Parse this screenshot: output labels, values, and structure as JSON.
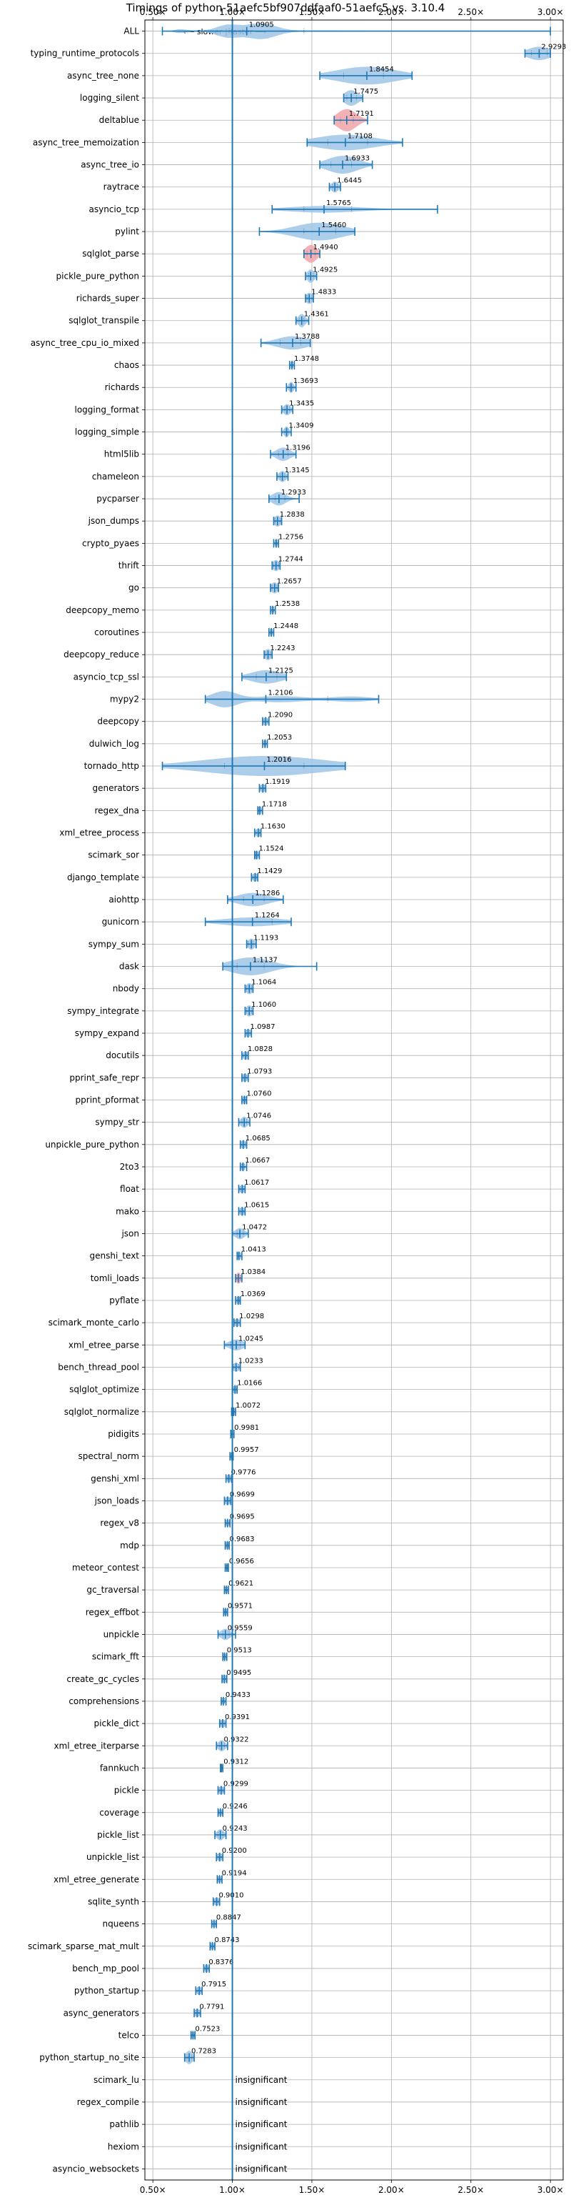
{
  "chart_data": {
    "type": "violin",
    "title": "Timings of python-51aefc5bf907ddfaaf0-51aefc5 vs. 3.10.4",
    "direction_label": "⟵ slower | faster ⟶",
    "xlim": [
      0.45,
      3.08
    ],
    "xticks": [
      0.5,
      1.0,
      1.5,
      2.0,
      2.5,
      3.0
    ],
    "xtick_labels": [
      "0.50×",
      "1.00×",
      "1.50×",
      "2.00×",
      "2.50×",
      "3.00×"
    ],
    "reference_x": 1.0,
    "grid": true,
    "colors": {
      "violin": "#9ec6e8",
      "violin_regression": "#f2a3a8",
      "line": "#1f77b4",
      "reference": "#1f77b4",
      "grid": "#b0b0b0"
    },
    "insignificant_label": "insignificant",
    "benchmarks": [
      {
        "name": "ALL",
        "mean": 1.0905,
        "label": "1.0905",
        "min": 0.56,
        "max": 3.0,
        "q1": 0.98,
        "q3": 1.45,
        "width": 1.2,
        "shape": "all"
      },
      {
        "name": "typing_runtime_protocols",
        "mean": 2.9293,
        "label": "2.9293",
        "min": 2.84,
        "max": 3.0,
        "q1": 2.88,
        "q3": 2.98,
        "width": 0.6
      },
      {
        "name": "async_tree_none",
        "mean": 1.8454,
        "label": "1.8454",
        "min": 1.55,
        "max": 2.13,
        "q1": 1.7,
        "q3": 1.95,
        "width": 0.8
      },
      {
        "name": "logging_silent",
        "mean": 1.7475,
        "label": "1.7475",
        "min": 1.7,
        "max": 1.82,
        "q1": 1.72,
        "q3": 1.78,
        "width": 0.7
      },
      {
        "name": "deltablue",
        "mean": 1.7191,
        "label": "1.7191",
        "min": 1.64,
        "max": 1.85,
        "q1": 1.68,
        "q3": 1.76,
        "width": 1.0,
        "regression": true
      },
      {
        "name": "async_tree_memoization",
        "mean": 1.7108,
        "label": "1.7108",
        "min": 1.47,
        "max": 2.07,
        "q1": 1.6,
        "q3": 1.85,
        "width": 0.7
      },
      {
        "name": "async_tree_io",
        "mean": 1.6933,
        "label": "1.6933",
        "min": 1.55,
        "max": 1.88,
        "q1": 1.62,
        "q3": 1.75,
        "width": 0.8
      },
      {
        "name": "raytrace",
        "mean": 1.6445,
        "label": "1.6445",
        "min": 1.61,
        "max": 1.68,
        "q1": 1.63,
        "q3": 1.66,
        "width": 0.5
      },
      {
        "name": "asyncio_tcp",
        "mean": 1.5765,
        "label": "1.5765",
        "min": 1.25,
        "max": 2.29,
        "q1": 1.45,
        "q3": 1.75,
        "width": 0.3
      },
      {
        "name": "pylint",
        "mean": 1.546,
        "label": "1.5460",
        "min": 1.17,
        "max": 1.77,
        "q1": 1.45,
        "q3": 1.65,
        "width": 0.8
      },
      {
        "name": "sqlglot_parse",
        "mean": 1.494,
        "label": "1.4940",
        "min": 1.45,
        "max": 1.55,
        "q1": 1.47,
        "q3": 1.52,
        "width": 0.8,
        "regression": true
      },
      {
        "name": "pickle_pure_python",
        "mean": 1.4925,
        "label": "1.4925",
        "min": 1.46,
        "max": 1.53,
        "q1": 1.48,
        "q3": 1.51,
        "width": 0.6
      },
      {
        "name": "richards_super",
        "mean": 1.4833,
        "label": "1.4833",
        "min": 1.46,
        "max": 1.51,
        "q1": 1.47,
        "q3": 1.5,
        "width": 0.5
      },
      {
        "name": "sqlglot_transpile",
        "mean": 1.4361,
        "label": "1.4361",
        "min": 1.4,
        "max": 1.48,
        "q1": 1.42,
        "q3": 1.45,
        "width": 0.6
      },
      {
        "name": "async_tree_cpu_io_mixed",
        "mean": 1.3788,
        "label": "1.3788",
        "min": 1.18,
        "max": 1.49,
        "q1": 1.3,
        "q3": 1.43,
        "width": 0.6
      },
      {
        "name": "chaos",
        "mean": 1.3748,
        "label": "1.3748",
        "min": 1.36,
        "max": 1.39,
        "q1": 1.37,
        "q3": 1.38,
        "width": 0.4
      },
      {
        "name": "richards",
        "mean": 1.3693,
        "label": "1.3693",
        "min": 1.34,
        "max": 1.4,
        "q1": 1.36,
        "q3": 1.38,
        "width": 0.5
      },
      {
        "name": "logging_format",
        "mean": 1.3435,
        "label": "1.3435",
        "min": 1.31,
        "max": 1.38,
        "q1": 1.33,
        "q3": 1.36,
        "width": 0.5
      },
      {
        "name": "logging_simple",
        "mean": 1.3409,
        "label": "1.3409",
        "min": 1.31,
        "max": 1.37,
        "q1": 1.33,
        "q3": 1.35,
        "width": 0.5
      },
      {
        "name": "html5lib",
        "mean": 1.3196,
        "label": "1.3196",
        "min": 1.24,
        "max": 1.4,
        "q1": 1.29,
        "q3": 1.35,
        "width": 0.6
      },
      {
        "name": "chameleon",
        "mean": 1.3145,
        "label": "1.3145",
        "min": 1.28,
        "max": 1.35,
        "q1": 1.3,
        "q3": 1.33,
        "width": 0.5
      },
      {
        "name": "pycparser",
        "mean": 1.2933,
        "label": "1.2933",
        "min": 1.23,
        "max": 1.42,
        "q1": 1.27,
        "q3": 1.33,
        "width": 0.6
      },
      {
        "name": "json_dumps",
        "mean": 1.2838,
        "label": "1.2838",
        "min": 1.26,
        "max": 1.31,
        "q1": 1.27,
        "q3": 1.3,
        "width": 0.5
      },
      {
        "name": "crypto_pyaes",
        "mean": 1.2756,
        "label": "1.2756",
        "min": 1.26,
        "max": 1.29,
        "q1": 1.27,
        "q3": 1.28,
        "width": 0.4
      },
      {
        "name": "thrift",
        "mean": 1.2744,
        "label": "1.2744",
        "min": 1.25,
        "max": 1.3,
        "q1": 1.26,
        "q3": 1.29,
        "width": 0.5
      },
      {
        "name": "go",
        "mean": 1.2657,
        "label": "1.2657",
        "min": 1.24,
        "max": 1.29,
        "q1": 1.25,
        "q3": 1.28,
        "width": 0.5
      },
      {
        "name": "deepcopy_memo",
        "mean": 1.2538,
        "label": "1.2538",
        "min": 1.24,
        "max": 1.27,
        "q1": 1.25,
        "q3": 1.26,
        "width": 0.4
      },
      {
        "name": "coroutines",
        "mean": 1.2448,
        "label": "1.2448",
        "min": 1.23,
        "max": 1.26,
        "q1": 1.24,
        "q3": 1.25,
        "width": 0.4
      },
      {
        "name": "deepcopy_reduce",
        "mean": 1.2243,
        "label": "1.2243",
        "min": 1.2,
        "max": 1.25,
        "q1": 1.21,
        "q3": 1.24,
        "width": 0.5
      },
      {
        "name": "asyncio_tcp_ssl",
        "mean": 1.2125,
        "label": "1.2125",
        "min": 1.06,
        "max": 1.34,
        "q1": 1.15,
        "q3": 1.28,
        "width": 0.6
      },
      {
        "name": "mypy2",
        "mean": 1.2106,
        "label": "1.2106",
        "min": 0.83,
        "max": 1.92,
        "q1": 1.0,
        "q3": 1.6,
        "width": 0.8,
        "shape": "mypy"
      },
      {
        "name": "deepcopy",
        "mean": 1.209,
        "label": "1.2090",
        "min": 1.19,
        "max": 1.23,
        "q1": 1.2,
        "q3": 1.22,
        "width": 0.4
      },
      {
        "name": "dulwich_log",
        "mean": 1.2053,
        "label": "1.2053",
        "min": 1.19,
        "max": 1.22,
        "q1": 1.2,
        "q3": 1.21,
        "width": 0.4
      },
      {
        "name": "tornado_http",
        "mean": 1.2016,
        "label": "1.2016",
        "min": 0.56,
        "max": 1.71,
        "q1": 0.95,
        "q3": 1.45,
        "width": 0.9
      },
      {
        "name": "generators",
        "mean": 1.1919,
        "label": "1.1919",
        "min": 1.17,
        "max": 1.21,
        "q1": 1.18,
        "q3": 1.2,
        "width": 0.4
      },
      {
        "name": "regex_dna",
        "mean": 1.1718,
        "label": "1.1718",
        "min": 1.16,
        "max": 1.19,
        "q1": 1.165,
        "q3": 1.18,
        "width": 0.4
      },
      {
        "name": "xml_etree_process",
        "mean": 1.163,
        "label": "1.1630",
        "min": 1.14,
        "max": 1.18,
        "q1": 1.15,
        "q3": 1.17,
        "width": 0.4
      },
      {
        "name": "scimark_sor",
        "mean": 1.1524,
        "label": "1.1524",
        "min": 1.14,
        "max": 1.17,
        "q1": 1.145,
        "q3": 1.16,
        "width": 0.4
      },
      {
        "name": "django_template",
        "mean": 1.1429,
        "label": "1.1429",
        "min": 1.12,
        "max": 1.16,
        "q1": 1.13,
        "q3": 1.15,
        "width": 0.4
      },
      {
        "name": "aiohttp",
        "mean": 1.1286,
        "label": "1.1286",
        "min": 0.97,
        "max": 1.32,
        "q1": 1.07,
        "q3": 1.2,
        "width": 0.6
      },
      {
        "name": "gunicorn",
        "mean": 1.1264,
        "label": "1.1264",
        "min": 0.83,
        "max": 1.37,
        "q1": 1.0,
        "q3": 1.25,
        "width": 0.4
      },
      {
        "name": "sympy_sum",
        "mean": 1.1193,
        "label": "1.1193",
        "min": 1.09,
        "max": 1.15,
        "q1": 1.1,
        "q3": 1.13,
        "width": 0.5
      },
      {
        "name": "dask",
        "mean": 1.1137,
        "label": "1.1137",
        "min": 0.94,
        "max": 1.53,
        "q1": 1.03,
        "q3": 1.2,
        "width": 0.8
      },
      {
        "name": "nbody",
        "mean": 1.1064,
        "label": "1.1064",
        "min": 1.08,
        "max": 1.13,
        "q1": 1.09,
        "q3": 1.12,
        "width": 0.5
      },
      {
        "name": "sympy_integrate",
        "mean": 1.106,
        "label": "1.1060",
        "min": 1.08,
        "max": 1.13,
        "q1": 1.09,
        "q3": 1.12,
        "width": 0.5
      },
      {
        "name": "sympy_expand",
        "mean": 1.0987,
        "label": "1.0987",
        "min": 1.08,
        "max": 1.12,
        "q1": 1.09,
        "q3": 1.11,
        "width": 0.4
      },
      {
        "name": "docutils",
        "mean": 1.0828,
        "label": "1.0828",
        "min": 1.06,
        "max": 1.1,
        "q1": 1.07,
        "q3": 1.09,
        "width": 0.4
      },
      {
        "name": "pprint_safe_repr",
        "mean": 1.0793,
        "label": "1.0793",
        "min": 1.06,
        "max": 1.1,
        "q1": 1.07,
        "q3": 1.09,
        "width": 0.4
      },
      {
        "name": "pprint_pformat",
        "mean": 1.076,
        "label": "1.0760",
        "min": 1.06,
        "max": 1.09,
        "q1": 1.07,
        "q3": 1.085,
        "width": 0.4
      },
      {
        "name": "sympy_str",
        "mean": 1.0746,
        "label": "1.0746",
        "min": 1.04,
        "max": 1.11,
        "q1": 1.06,
        "q3": 1.09,
        "width": 0.5
      },
      {
        "name": "unpickle_pure_python",
        "mean": 1.0685,
        "label": "1.0685",
        "min": 1.05,
        "max": 1.09,
        "q1": 1.06,
        "q3": 1.08,
        "width": 0.4
      },
      {
        "name": "2to3",
        "mean": 1.0667,
        "label": "1.0667",
        "min": 1.05,
        "max": 1.09,
        "q1": 1.06,
        "q3": 1.075,
        "width": 0.4
      },
      {
        "name": "float",
        "mean": 1.0617,
        "label": "1.0617",
        "min": 1.04,
        "max": 1.08,
        "q1": 1.05,
        "q3": 1.07,
        "width": 0.4
      },
      {
        "name": "mako",
        "mean": 1.0615,
        "label": "1.0615",
        "min": 1.04,
        "max": 1.08,
        "q1": 1.05,
        "q3": 1.07,
        "width": 0.4
      },
      {
        "name": "json",
        "mean": 1.0472,
        "label": "1.0472",
        "min": 1.0,
        "max": 1.1,
        "q1": 1.03,
        "q3": 1.07,
        "width": 0.5
      },
      {
        "name": "genshi_text",
        "mean": 1.0413,
        "label": "1.0413",
        "min": 1.03,
        "max": 1.06,
        "q1": 1.035,
        "q3": 1.05,
        "width": 0.4
      },
      {
        "name": "tomli_loads",
        "mean": 1.0384,
        "label": "1.0384",
        "min": 1.02,
        "max": 1.06,
        "q1": 1.03,
        "q3": 1.05,
        "width": 0.5,
        "regression": true
      },
      {
        "name": "pyflate",
        "mean": 1.0369,
        "label": "1.0369",
        "min": 1.02,
        "max": 1.05,
        "q1": 1.03,
        "q3": 1.045,
        "width": 0.4
      },
      {
        "name": "scimark_monte_carlo",
        "mean": 1.0298,
        "label": "1.0298",
        "min": 1.01,
        "max": 1.05,
        "q1": 1.02,
        "q3": 1.04,
        "width": 0.4
      },
      {
        "name": "xml_etree_parse",
        "mean": 1.0245,
        "label": "1.0245",
        "min": 0.95,
        "max": 1.08,
        "q1": 0.99,
        "q3": 1.05,
        "width": 0.5
      },
      {
        "name": "bench_thread_pool",
        "mean": 1.0233,
        "label": "1.0233",
        "min": 1.0,
        "max": 1.05,
        "q1": 1.01,
        "q3": 1.04,
        "width": 0.4
      },
      {
        "name": "sqlglot_optimize",
        "mean": 1.0166,
        "label": "1.0166",
        "min": 1.0,
        "max": 1.03,
        "q1": 1.01,
        "q3": 1.025,
        "width": 0.4
      },
      {
        "name": "sqlglot_normalize",
        "mean": 1.0072,
        "label": "1.0072",
        "min": 0.995,
        "max": 1.02,
        "q1": 1.0,
        "q3": 1.015,
        "width": 0.4
      },
      {
        "name": "pidigits",
        "mean": 0.9981,
        "label": "0.9981",
        "min": 0.99,
        "max": 1.01,
        "q1": 0.995,
        "q3": 1.0,
        "width": 0.3
      },
      {
        "name": "spectral_norm",
        "mean": 0.9957,
        "label": "0.9957",
        "min": 0.985,
        "max": 1.005,
        "q1": 0.99,
        "q3": 1.0,
        "width": 0.3
      },
      {
        "name": "genshi_xml",
        "mean": 0.9776,
        "label": "0.9776",
        "min": 0.96,
        "max": 0.995,
        "q1": 0.97,
        "q3": 0.985,
        "width": 0.4
      },
      {
        "name": "json_loads",
        "mean": 0.9699,
        "label": "0.9699",
        "min": 0.95,
        "max": 0.99,
        "q1": 0.96,
        "q3": 0.98,
        "width": 0.4
      },
      {
        "name": "regex_v8",
        "mean": 0.9695,
        "label": "0.9695",
        "min": 0.955,
        "max": 0.985,
        "q1": 0.96,
        "q3": 0.98,
        "width": 0.3
      },
      {
        "name": "mdp",
        "mean": 0.9683,
        "label": "0.9683",
        "min": 0.955,
        "max": 0.98,
        "q1": 0.96,
        "q3": 0.975,
        "width": 0.3
      },
      {
        "name": "meteor_contest",
        "mean": 0.9656,
        "label": "0.9656",
        "min": 0.955,
        "max": 0.975,
        "q1": 0.96,
        "q3": 0.97,
        "width": 0.3
      },
      {
        "name": "gc_traversal",
        "mean": 0.9621,
        "label": "0.9621",
        "min": 0.95,
        "max": 0.975,
        "q1": 0.955,
        "q3": 0.97,
        "width": 0.3
      },
      {
        "name": "regex_effbot",
        "mean": 0.9571,
        "label": "0.9571",
        "min": 0.945,
        "max": 0.97,
        "q1": 0.95,
        "q3": 0.965,
        "width": 0.3
      },
      {
        "name": "unpickle",
        "mean": 0.9559,
        "label": "0.9559",
        "min": 0.91,
        "max": 1.02,
        "q1": 0.94,
        "q3": 0.98,
        "width": 0.5
      },
      {
        "name": "scimark_fft",
        "mean": 0.9513,
        "label": "0.9513",
        "min": 0.94,
        "max": 0.965,
        "q1": 0.945,
        "q3": 0.96,
        "width": 0.3
      },
      {
        "name": "create_gc_cycles",
        "mean": 0.9495,
        "label": "0.9495",
        "min": 0.935,
        "max": 0.965,
        "q1": 0.94,
        "q3": 0.96,
        "width": 0.4
      },
      {
        "name": "comprehensions",
        "mean": 0.9433,
        "label": "0.9433",
        "min": 0.93,
        "max": 0.96,
        "q1": 0.935,
        "q3": 0.95,
        "width": 0.3
      },
      {
        "name": "pickle_dict",
        "mean": 0.9391,
        "label": "0.9391",
        "min": 0.92,
        "max": 0.96,
        "q1": 0.93,
        "q3": 0.95,
        "width": 0.4
      },
      {
        "name": "xml_etree_iterparse",
        "mean": 0.9322,
        "label": "0.9322",
        "min": 0.9,
        "max": 0.97,
        "q1": 0.92,
        "q3": 0.95,
        "width": 0.5
      },
      {
        "name": "fannkuch",
        "mean": 0.9312,
        "label": "0.9312",
        "min": 0.925,
        "max": 0.94,
        "q1": 0.928,
        "q3": 0.935,
        "width": 0.3
      },
      {
        "name": "pickle",
        "mean": 0.9299,
        "label": "0.9299",
        "min": 0.91,
        "max": 0.95,
        "q1": 0.92,
        "q3": 0.94,
        "width": 0.4
      },
      {
        "name": "coverage",
        "mean": 0.9246,
        "label": "0.9246",
        "min": 0.91,
        "max": 0.94,
        "q1": 0.915,
        "q3": 0.935,
        "width": 0.3
      },
      {
        "name": "pickle_list",
        "mean": 0.9243,
        "label": "0.9243",
        "min": 0.89,
        "max": 0.96,
        "q1": 0.91,
        "q3": 0.94,
        "width": 0.5
      },
      {
        "name": "unpickle_list",
        "mean": 0.92,
        "label": "0.9200",
        "min": 0.9,
        "max": 0.94,
        "q1": 0.91,
        "q3": 0.93,
        "width": 0.4
      },
      {
        "name": "xml_etree_generate",
        "mean": 0.9194,
        "label": "0.9194",
        "min": 0.905,
        "max": 0.935,
        "q1": 0.91,
        "q3": 0.93,
        "width": 0.3
      },
      {
        "name": "sqlite_synth",
        "mean": 0.901,
        "label": "0.9010",
        "min": 0.88,
        "max": 0.92,
        "q1": 0.89,
        "q3": 0.91,
        "width": 0.4
      },
      {
        "name": "nqueens",
        "mean": 0.8847,
        "label": "0.8847",
        "min": 0.87,
        "max": 0.9,
        "q1": 0.875,
        "q3": 0.895,
        "width": 0.3
      },
      {
        "name": "scimark_sparse_mat_mult",
        "mean": 0.8743,
        "label": "0.8743",
        "min": 0.86,
        "max": 0.89,
        "q1": 0.865,
        "q3": 0.885,
        "width": 0.3
      },
      {
        "name": "bench_mp_pool",
        "mean": 0.8376,
        "label": "0.8376",
        "min": 0.82,
        "max": 0.855,
        "q1": 0.83,
        "q3": 0.845,
        "width": 0.4
      },
      {
        "name": "python_startup",
        "mean": 0.7915,
        "label": "0.7915",
        "min": 0.77,
        "max": 0.81,
        "q1": 0.78,
        "q3": 0.8,
        "width": 0.4
      },
      {
        "name": "async_generators",
        "mean": 0.7791,
        "label": "0.7791",
        "min": 0.76,
        "max": 0.8,
        "q1": 0.77,
        "q3": 0.79,
        "width": 0.4
      },
      {
        "name": "telco",
        "mean": 0.7523,
        "label": "0.7523",
        "min": 0.74,
        "max": 0.765,
        "q1": 0.745,
        "q3": 0.76,
        "width": 0.3
      },
      {
        "name": "python_startup_no_site",
        "mean": 0.7283,
        "label": "0.7283",
        "min": 0.7,
        "max": 0.76,
        "q1": 0.715,
        "q3": 0.745,
        "width": 0.6
      },
      {
        "name": "scimark_lu",
        "insignificant": true
      },
      {
        "name": "regex_compile",
        "insignificant": true
      },
      {
        "name": "pathlib",
        "insignificant": true
      },
      {
        "name": "hexiom",
        "insignificant": true
      },
      {
        "name": "asyncio_websockets",
        "insignificant": true
      }
    ]
  }
}
